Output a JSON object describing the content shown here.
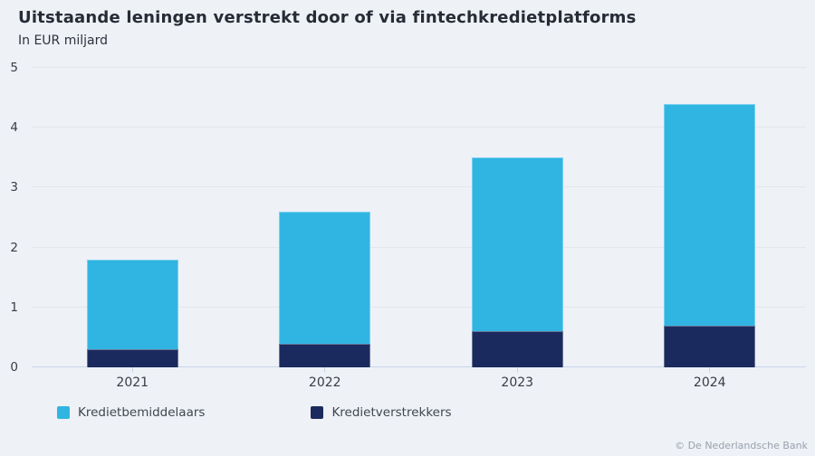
{
  "header": {
    "title": "Uitstaande leningen verstrekt door of via fintechkredietplatforms",
    "subtitle": "In EUR miljard"
  },
  "footer": {
    "credit": "© De Nederlandsche Bank"
  },
  "colors": {
    "background": "#eef1f6",
    "gridline": "#e3e6ea",
    "axis_line": "#c9d5ea",
    "light_blue": "#30b5e3",
    "navy": "#1b2a5e",
    "text": "#383c45",
    "muted": "#9aa1ac"
  },
  "chart_data": {
    "type": "bar",
    "stacked": true,
    "title": "Uitstaande leningen verstrekt door of via fintechkredietplatforms",
    "subtitle": "In EUR miljard",
    "categories": [
      "2021",
      "2022",
      "2023",
      "2024"
    ],
    "series": [
      {
        "name": "Kredietverstrekkers",
        "color": "#1b2a5e",
        "values": [
          0.3,
          0.4,
          0.6,
          0.7
        ]
      },
      {
        "name": "Kredietbemiddelaars",
        "color": "#30b5e3",
        "values": [
          1.5,
          2.2,
          2.9,
          3.7
        ]
      }
    ],
    "stack_totals": [
      1.8,
      2.6,
      3.5,
      4.4
    ],
    "xlabel": "",
    "ylabel": "In EUR miljard",
    "ylim": [
      0,
      5
    ],
    "yticks": [
      0,
      1,
      2,
      3,
      4,
      5
    ],
    "grid": true,
    "legend_position": "bottom",
    "legend_items": [
      {
        "label": "Kredietbemiddelaars",
        "color": "#30b5e3"
      },
      {
        "label": "Kredietverstrekkers",
        "color": "#1b2a5e"
      }
    ]
  }
}
